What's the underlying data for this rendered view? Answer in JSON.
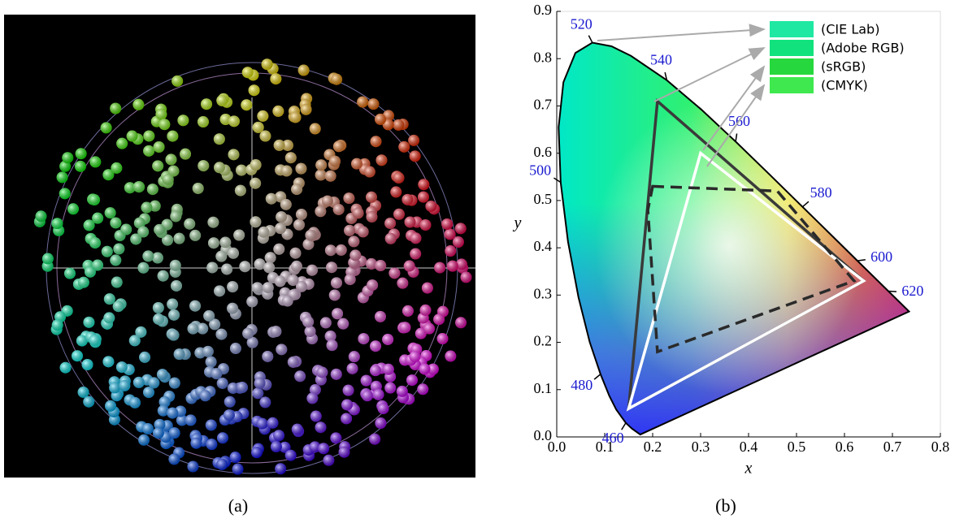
{
  "caption_a": "(a)",
  "caption_b": "(b)",
  "chart_data": {
    "type": "chromaticity",
    "xlabel": "x",
    "ylabel": "y",
    "xlim": [
      0,
      0.8
    ],
    "ylim": [
      0,
      0.9
    ],
    "xticks": [
      {
        "value": 0,
        "label": "0.0"
      },
      0.1,
      0.2,
      0.3,
      0.4,
      0.5,
      0.6,
      0.7,
      0.8
    ],
    "yticks": [
      {
        "value": 0,
        "label": "0.0"
      },
      0.1,
      0.2,
      0.3,
      0.4,
      0.5,
      0.6,
      0.7,
      0.8,
      0.9
    ],
    "locus": {
      "x": [
        0.1741,
        0.1566,
        0.144,
        0.1241,
        0.1096,
        0.0913,
        0.0687,
        0.0454,
        0.0235,
        0.0082,
        0.0039,
        0.0139,
        0.0389,
        0.0743,
        0.1142,
        0.1547,
        0.2296,
        0.3016,
        0.3731,
        0.4441,
        0.5125,
        0.5752,
        0.627,
        0.6915,
        0.7347
      ],
      "y": [
        0.005,
        0.0177,
        0.0297,
        0.0578,
        0.0868,
        0.1327,
        0.2007,
        0.295,
        0.4127,
        0.5384,
        0.6548,
        0.7502,
        0.812,
        0.8338,
        0.8262,
        0.8059,
        0.7543,
        0.6923,
        0.6245,
        0.5547,
        0.4866,
        0.4242,
        0.3725,
        0.3083,
        0.2653
      ]
    },
    "wavelength_labels": {
      "labels": [
        460,
        480,
        500,
        520,
        540,
        560,
        580,
        600,
        620
      ],
      "x": [
        0.144,
        0.0913,
        0.0082,
        0.0743,
        0.2296,
        0.3731,
        0.5125,
        0.627,
        0.6915
      ],
      "y": [
        0.0297,
        0.1327,
        0.5384,
        0.8338,
        0.7543,
        0.6245,
        0.4866,
        0.3725,
        0.3083
      ]
    },
    "series": [
      {
        "name": "(CIE Lab)",
        "swatch": "#1ee8a2"
      },
      {
        "name": "(Adobe RGB)",
        "swatch": "#12e27e",
        "color": "#3a3a3a",
        "x": [
          0.64,
          0.21,
          0.15
        ],
        "y": [
          0.33,
          0.71,
          0.06
        ]
      },
      {
        "name": "(sRGB)",
        "swatch": "#26d83e",
        "color": "#ffffff",
        "x": [
          0.64,
          0.3,
          0.15
        ],
        "y": [
          0.33,
          0.6,
          0.06
        ]
      },
      {
        "name": "(CMYK)",
        "swatch": "#3ee84e",
        "color": "#2a2a2a",
        "dashed": true,
        "x": [
          0.2,
          0.46,
          0.62,
          0.21,
          0.19
        ],
        "y": [
          0.53,
          0.52,
          0.33,
          0.18,
          0.48
        ]
      }
    ]
  }
}
